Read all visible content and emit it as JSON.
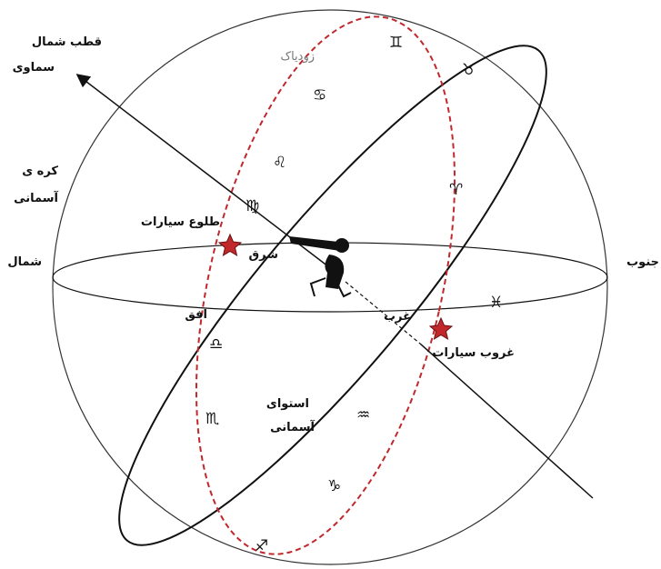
{
  "labels": {
    "north_pole": [
      "قطب شمال",
      "سماوی"
    ],
    "sphere": [
      "کره ی",
      "آسمانی"
    ],
    "north": "شمال",
    "south": "جنوب",
    "zodiac": "زودیاک",
    "rising": "طلوع سیارات",
    "east": "شرق",
    "west": "غرب",
    "horizon": "افق",
    "setting": "غروب سیارات",
    "equator": [
      "استوای",
      "آسمانی"
    ]
  },
  "signs": [
    "♊",
    "♉",
    "♋",
    "♌",
    "♍",
    "♈",
    "♓",
    "♎",
    "♏",
    "♒",
    "♑",
    "♐"
  ]
}
